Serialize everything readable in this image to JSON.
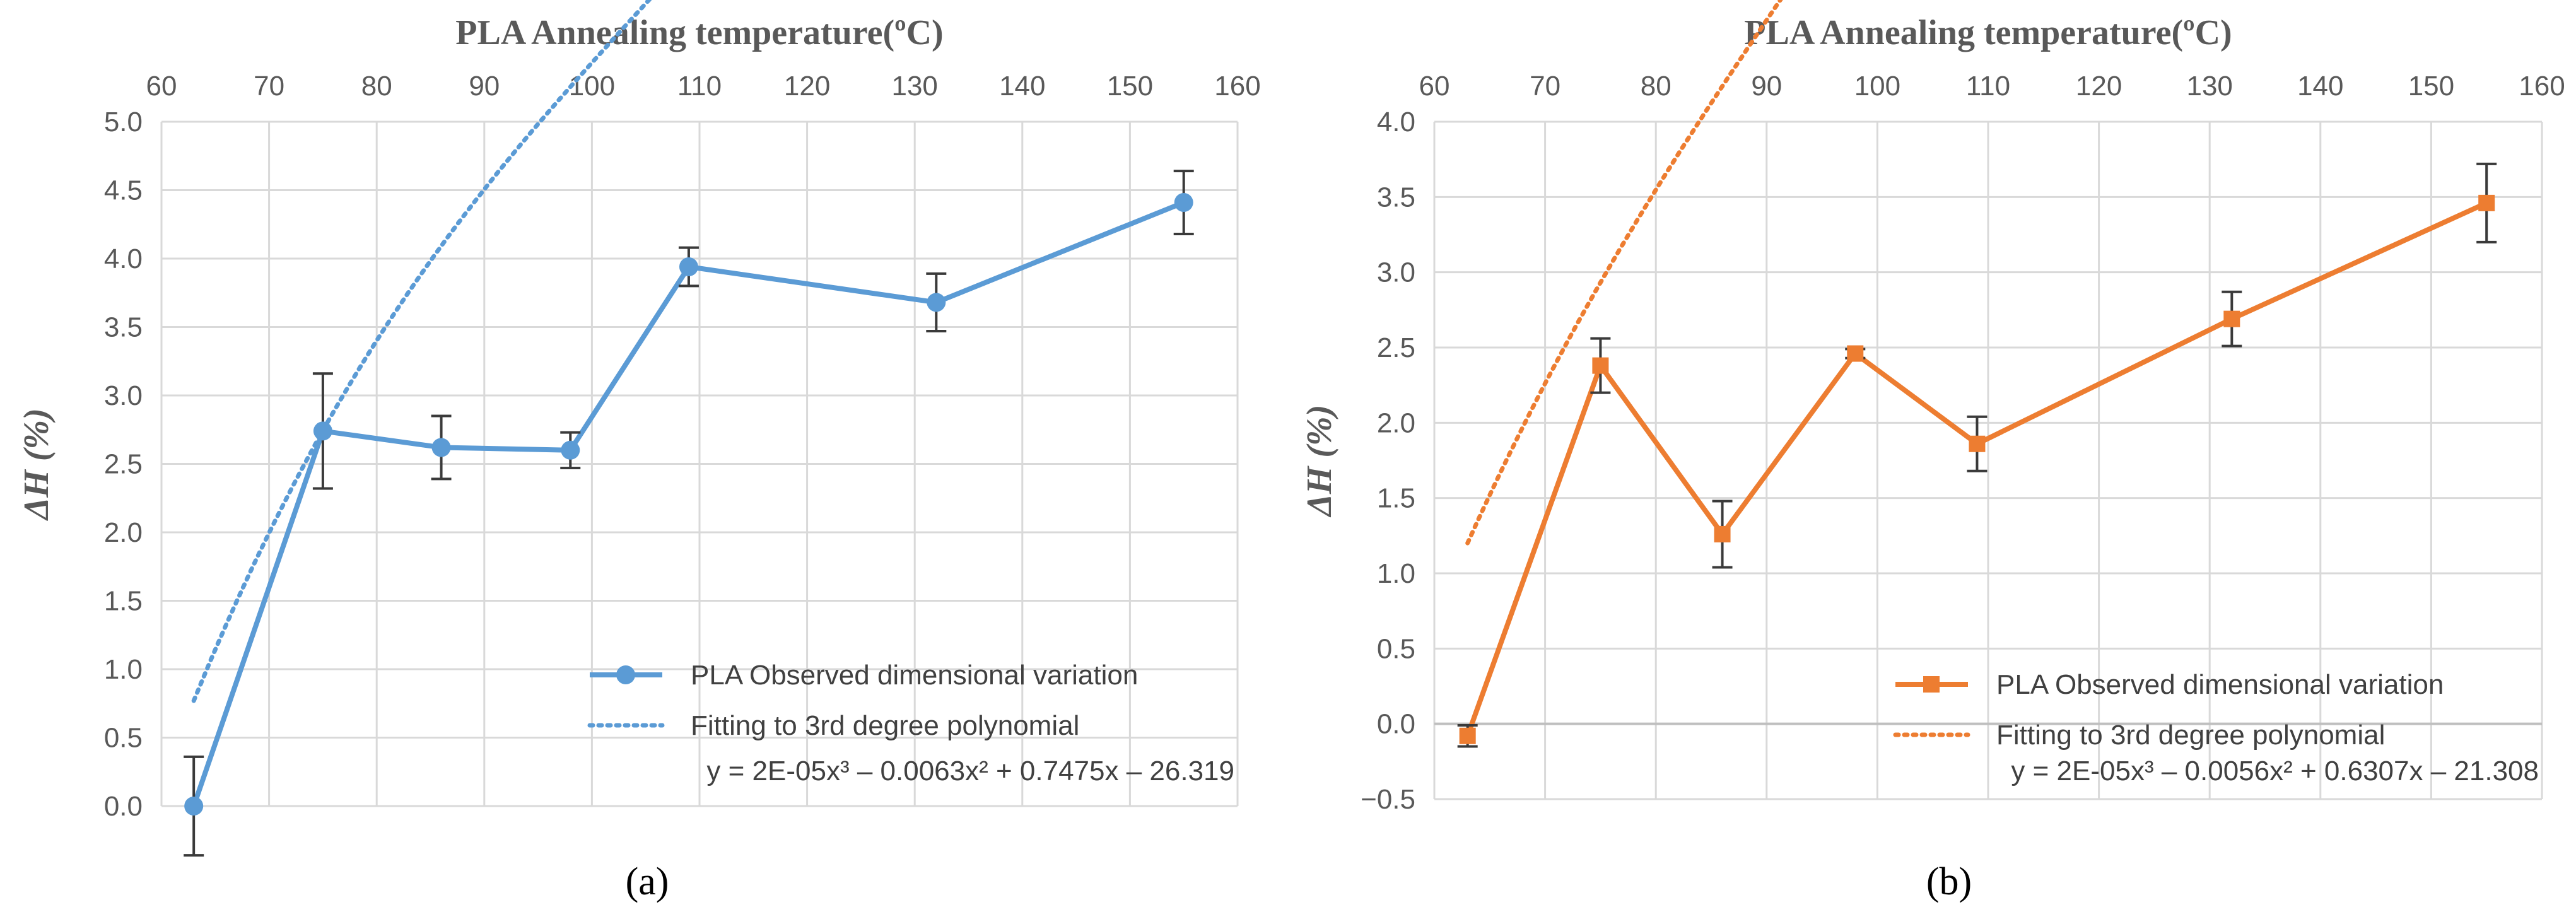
{
  "chart_data": [
    {
      "type": "line",
      "title": "PLA Annealing temperature(ºC)",
      "xlabel": "PLA Annealing temperature(ºC)",
      "ylabel": "ΔH (%)",
      "xlim": [
        60,
        160
      ],
      "ylim": [
        0,
        5
      ],
      "xticks": [
        "60",
        "70",
        "80",
        "90",
        "100",
        "110",
        "120",
        "130",
        "140",
        "150",
        "160"
      ],
      "yticks": [
        "0.0",
        "0.5",
        "1.0",
        "1.5",
        "2.0",
        "2.5",
        "3.0",
        "3.5",
        "4.0",
        "4.5",
        "5.0"
      ],
      "grid": true,
      "legend_position": "bottom-right",
      "panel_label": "(a)",
      "color": "#5B9BD5",
      "marker": "circle",
      "series": [
        {
          "name": "PLA Observed dimensional variation",
          "x": [
            63,
            75,
            86,
            98,
            109,
            132,
            155
          ],
          "y": [
            0.0,
            2.74,
            2.62,
            2.6,
            3.94,
            3.68,
            4.41
          ],
          "error": [
            0.36,
            0.42,
            0.23,
            0.13,
            0.14,
            0.21,
            0.23
          ]
        }
      ],
      "fit": {
        "name": "Fitting to 3rd degree polynomial",
        "coefficients": [
          2e-05,
          -0.0063,
          0.7475,
          -26.319
        ],
        "equation": "y = 2E-05x³ – 0.0063x² + 0.7475x – 26.319"
      }
    },
    {
      "type": "line",
      "title": "PLA Annealing temperature(ºC)",
      "xlabel": "PLA Annealing temperature(ºC)",
      "ylabel": "ΔH (%)",
      "xlim": [
        60,
        160
      ],
      "ylim": [
        -0.5,
        4
      ],
      "xticks": [
        "60",
        "70",
        "80",
        "90",
        "100",
        "110",
        "120",
        "130",
        "140",
        "150",
        "160"
      ],
      "yticks": [
        "−0.5",
        "0.0",
        "0.5",
        "1.0",
        "1.5",
        "2.0",
        "2.5",
        "3.0",
        "3.5",
        "4.0"
      ],
      "grid": true,
      "legend_position": "bottom-right",
      "panel_label": "(b)",
      "color": "#ED7D31",
      "marker": "square",
      "series": [
        {
          "name": "PLA Observed dimensional variation",
          "x": [
            63,
            75,
            86,
            98,
            109,
            132,
            155
          ],
          "y": [
            -0.08,
            2.38,
            1.26,
            2.46,
            1.86,
            2.69,
            3.46
          ],
          "error": [
            0.07,
            0.18,
            0.22,
            0.03,
            0.18,
            0.18,
            0.26
          ]
        }
      ],
      "fit": {
        "name": "Fitting to 3rd degree polynomial",
        "coefficients": [
          2e-05,
          -0.0056,
          0.6307,
          -21.308
        ],
        "equation": "y = 2E-05x³ – 0.0056x² + 0.6307x – 21.308"
      }
    }
  ]
}
